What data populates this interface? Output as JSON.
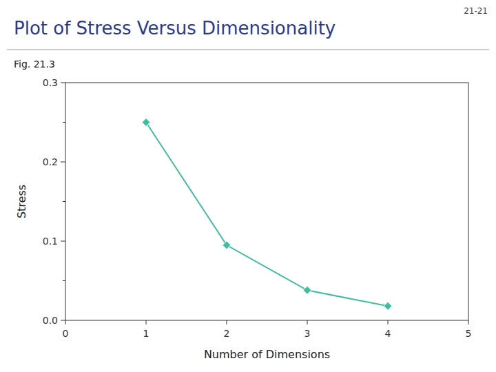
{
  "chart_data": {
    "type": "line",
    "title": "Plot of Stress Versus Dimensionality",
    "subtitle": "Fig. 21.3",
    "annotations": [
      "21-21"
    ],
    "x_label": "Number of Dimensions",
    "y_label": "Stress",
    "x": [
      1,
      2,
      3,
      4
    ],
    "series": [
      {
        "color": "#3dbf9f",
        "marker": "diamond",
        "values": [
          0.25,
          0.095,
          0.038,
          0.018
        ]
      }
    ],
    "xlim": [
      0,
      5
    ],
    "ylim": [
      0.0,
      0.3
    ],
    "xticks": [
      0,
      1,
      2,
      3,
      4,
      5
    ],
    "yticks": [
      {
        "value": 0,
        "label": "0.0"
      },
      0.1,
      0.2,
      0.3
    ],
    "minor_yticks": [
      0.05,
      0.15,
      0.25
    ],
    "grid": false
  }
}
